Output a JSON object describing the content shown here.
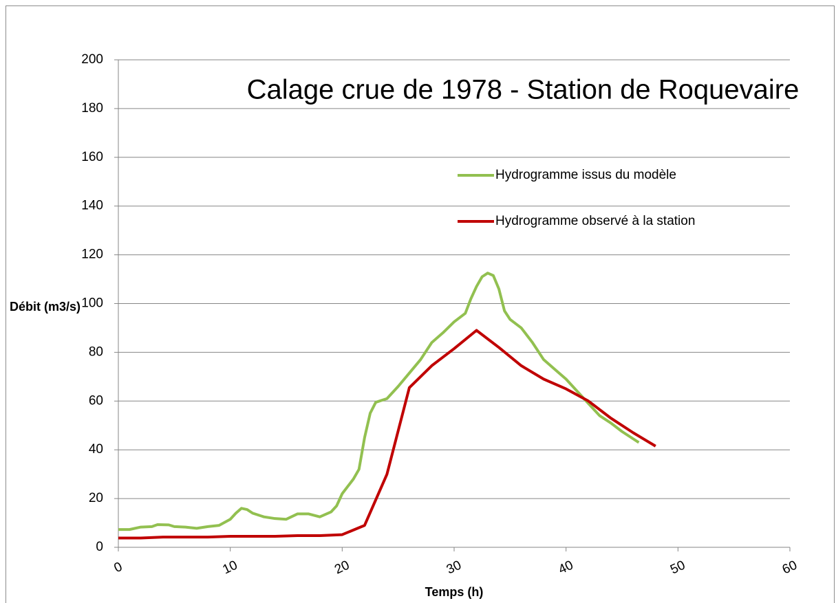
{
  "chart_data": {
    "type": "line",
    "title": "Calage crue de 1978 - Station de Roquevaire",
    "xlabel": "Temps (h)",
    "ylabel": "Débit (m3/s)",
    "xlim": [
      0,
      60
    ],
    "xticks": [
      0,
      10,
      20,
      30,
      40,
      50,
      60
    ],
    "ylim": [
      0,
      200
    ],
    "yticks": [
      0,
      20,
      40,
      60,
      80,
      100,
      120,
      140,
      160,
      180,
      200
    ],
    "grid": true,
    "series": [
      {
        "name": "Hydrogramme issus du modèle",
        "color": "#92c050",
        "x": [
          0,
          1,
          2,
          3,
          3.5,
          4.5,
          5,
          6,
          7,
          8,
          9,
          10,
          10.5,
          11,
          11.5,
          12,
          13,
          14,
          15,
          16,
          17,
          18,
          19,
          19.5,
          20,
          21,
          21.5,
          22,
          22.5,
          23,
          24,
          25,
          26,
          27,
          28,
          29,
          30,
          31,
          31.5,
          32,
          32.5,
          33,
          33.5,
          34,
          34.5,
          35,
          36,
          37,
          38,
          39,
          40,
          41,
          42,
          43,
          44,
          45,
          46,
          46.5
        ],
        "values": [
          7.3,
          7.3,
          8.3,
          8.5,
          9.3,
          9.2,
          8.5,
          8.3,
          7.8,
          8.5,
          9,
          11.5,
          14,
          16,
          15.5,
          14,
          12.5,
          11.8,
          11.5,
          13.7,
          13.7,
          12.5,
          14.5,
          17,
          22,
          28,
          32,
          45,
          55,
          59.5,
          61,
          66,
          71.5,
          77,
          84,
          88,
          92.5,
          96,
          102,
          107,
          111,
          112.5,
          111.5,
          106,
          97,
          93.5,
          90,
          84,
          77,
          73,
          69,
          64,
          59,
          54,
          51,
          47.5,
          44.5,
          43
        ]
      },
      {
        "name": "Hydrogramme observé à la station",
        "color": "#c00000",
        "x": [
          0,
          2,
          4,
          8,
          10,
          14,
          16,
          18,
          20,
          22,
          24,
          26,
          28,
          30,
          32,
          34,
          36,
          38,
          40,
          42,
          44,
          46,
          48
        ],
        "values": [
          3.8,
          3.8,
          4.2,
          4.2,
          4.5,
          4.5,
          4.8,
          4.8,
          5.2,
          9,
          30,
          65.5,
          74.5,
          81.5,
          89,
          82,
          74.5,
          69,
          65,
          60,
          53,
          47,
          41.5
        ]
      }
    ]
  }
}
